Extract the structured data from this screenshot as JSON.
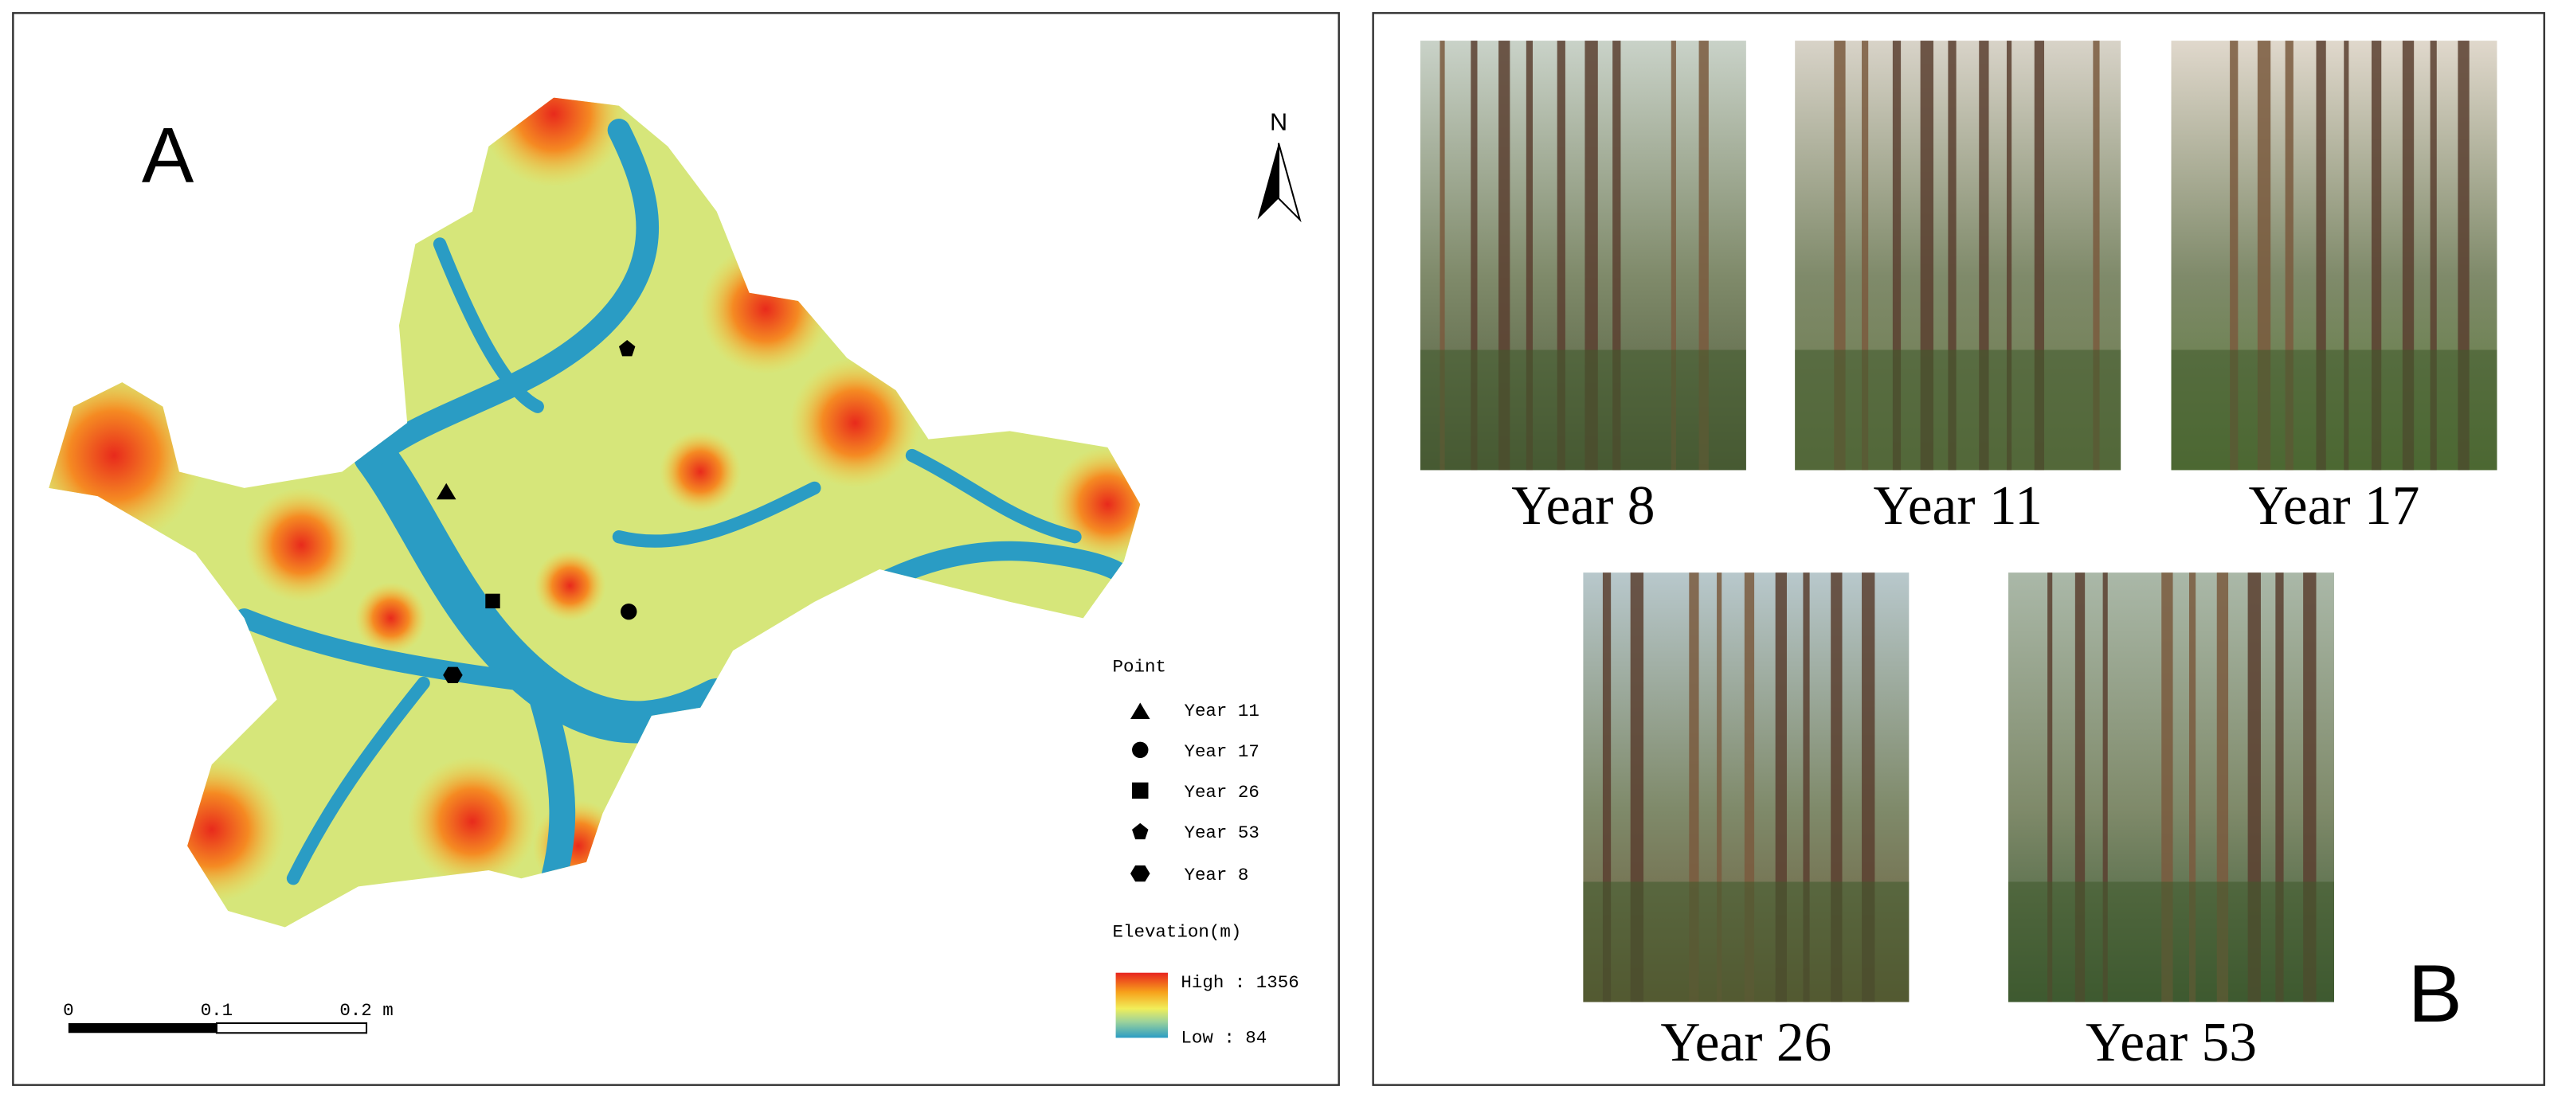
{
  "panel_a": {
    "label": "A",
    "north": "N",
    "legend": {
      "title": "Point",
      "items": [
        "Year 11",
        "Year 17",
        "Year 26",
        "Year 53",
        "Year 8"
      ]
    },
    "elevation": {
      "title": "Elevation(m)",
      "high": "High : 1356",
      "low": "Low : 84"
    },
    "scale_bar": [
      "0",
      "0.1",
      "0.2 m"
    ]
  },
  "panel_b": {
    "label": "B",
    "photos": [
      "Year 8",
      "Year 11",
      "Year 17",
      "Year 26",
      "Year 53"
    ]
  }
}
